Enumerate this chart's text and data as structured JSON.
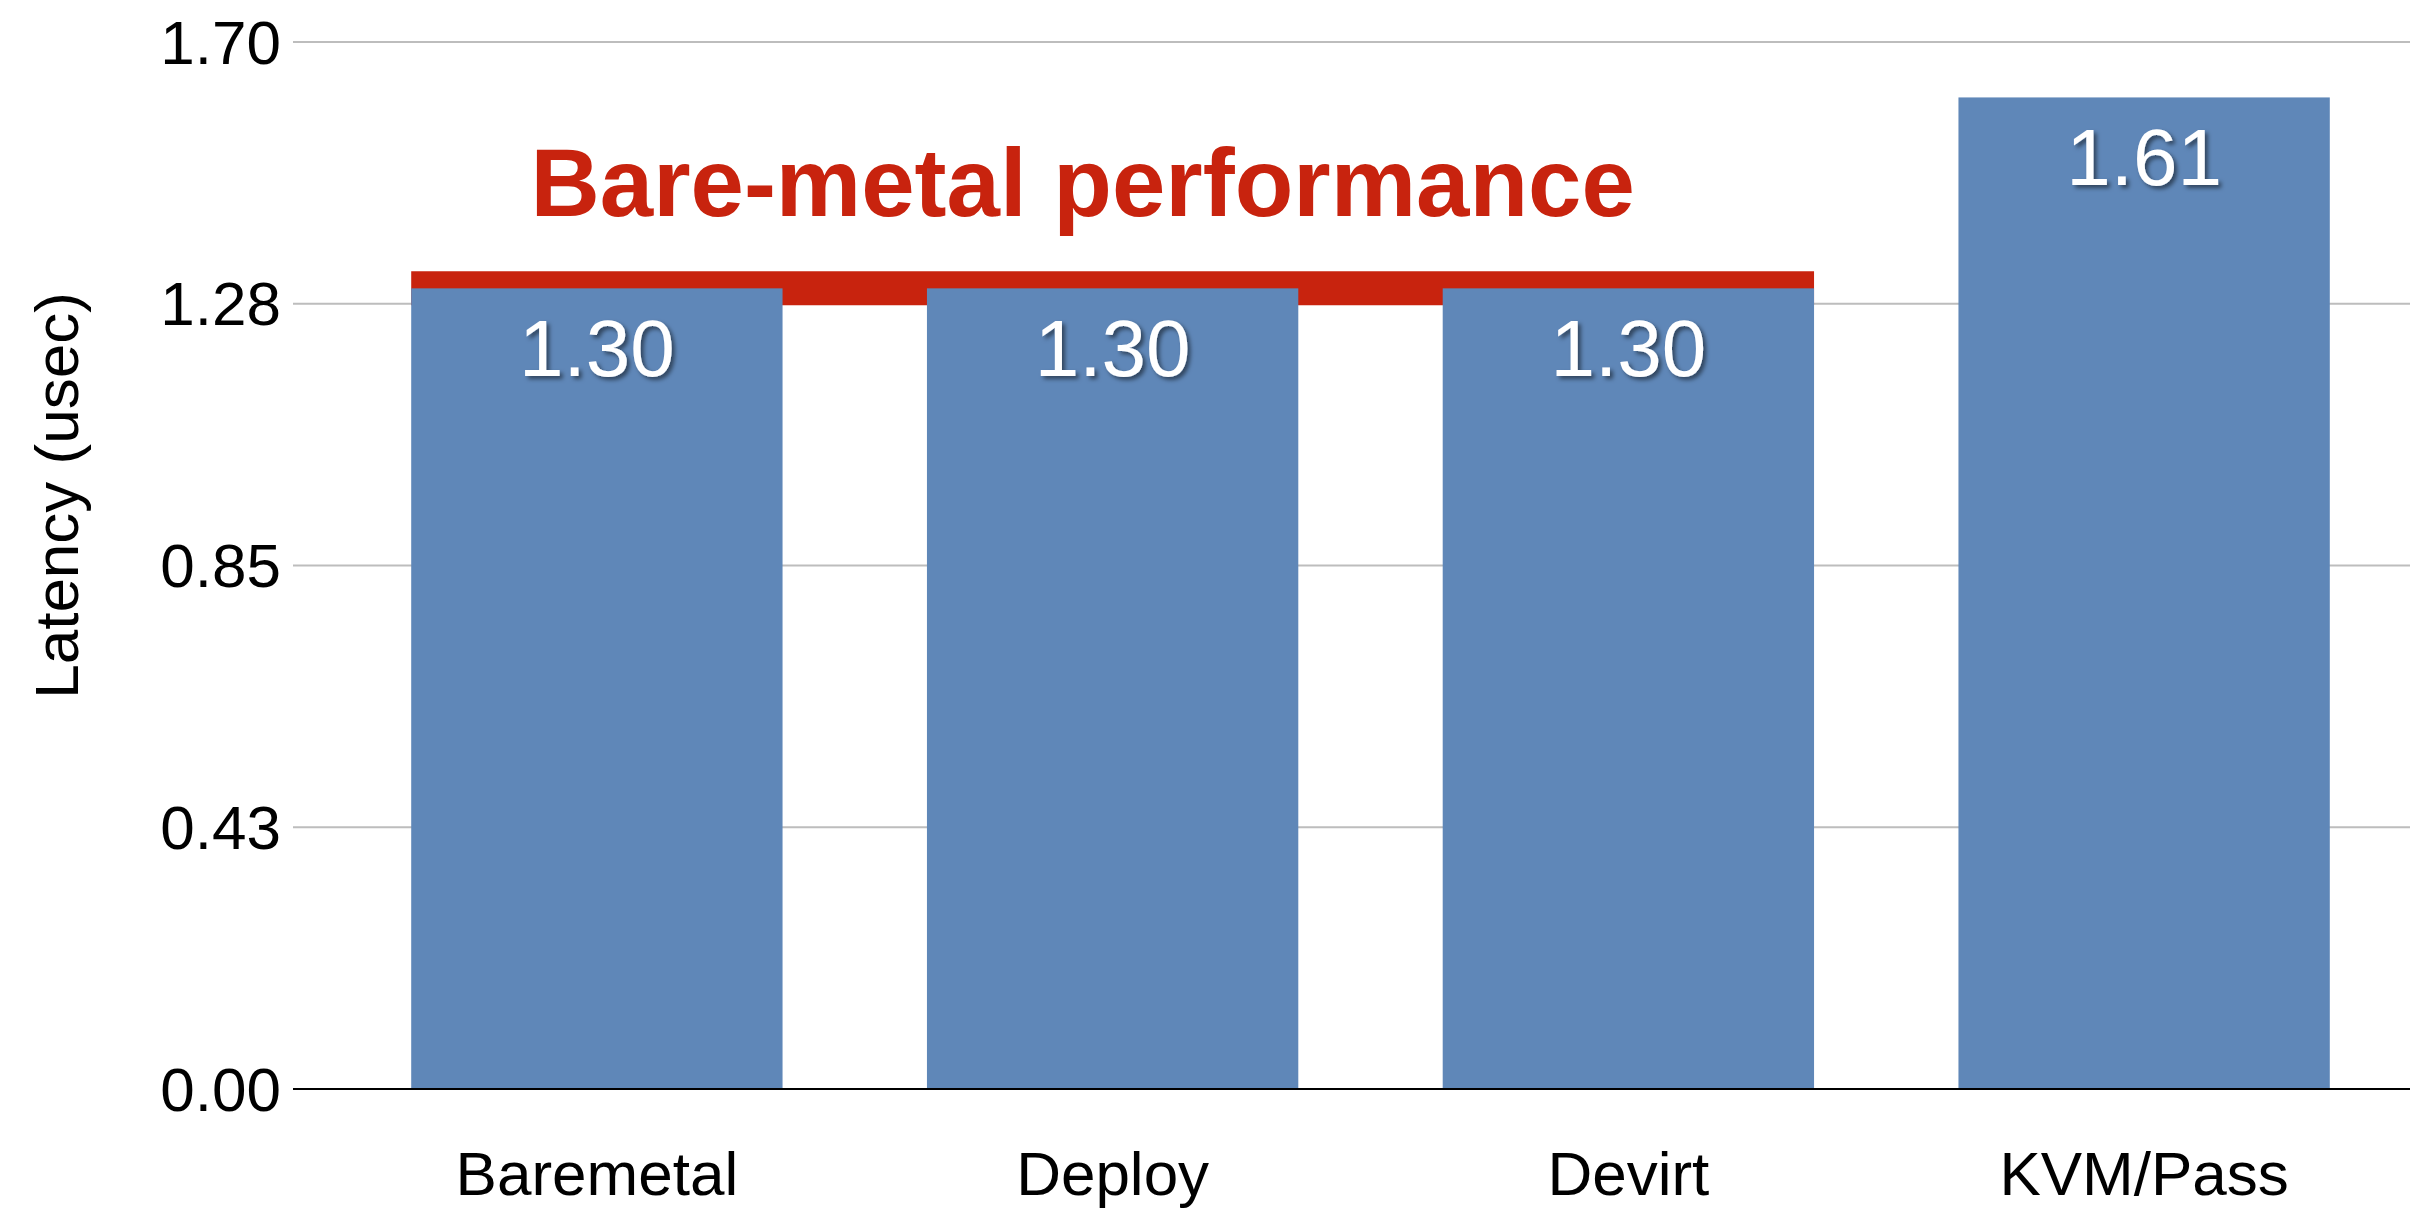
{
  "chart_data": {
    "type": "bar",
    "ylabel": "Latency (usec)",
    "categories": [
      "Baremetal",
      "Deploy",
      "Devirt",
      "KVM/Pass"
    ],
    "values": [
      1.3,
      1.3,
      1.3,
      1.61
    ],
    "value_labels": [
      "1.30",
      "1.30",
      "1.30",
      "1.61"
    ],
    "color": "#5f87b8",
    "ylim": [
      0,
      1.7
    ],
    "yticks": [
      {
        "value": 0,
        "label": "0.00"
      },
      {
        "value": 0.425,
        "label": "0.43"
      },
      {
        "value": 0.85,
        "label": "0.85"
      },
      {
        "value": 1.275,
        "label": "1.28"
      },
      {
        "value": 1.7,
        "label": "1.70"
      }
    ],
    "grid": "y",
    "ref_lines": [
      {
        "axis": "y",
        "value": 1.3,
        "label": "Bare-metal performance",
        "color": "#c8230e"
      }
    ]
  }
}
